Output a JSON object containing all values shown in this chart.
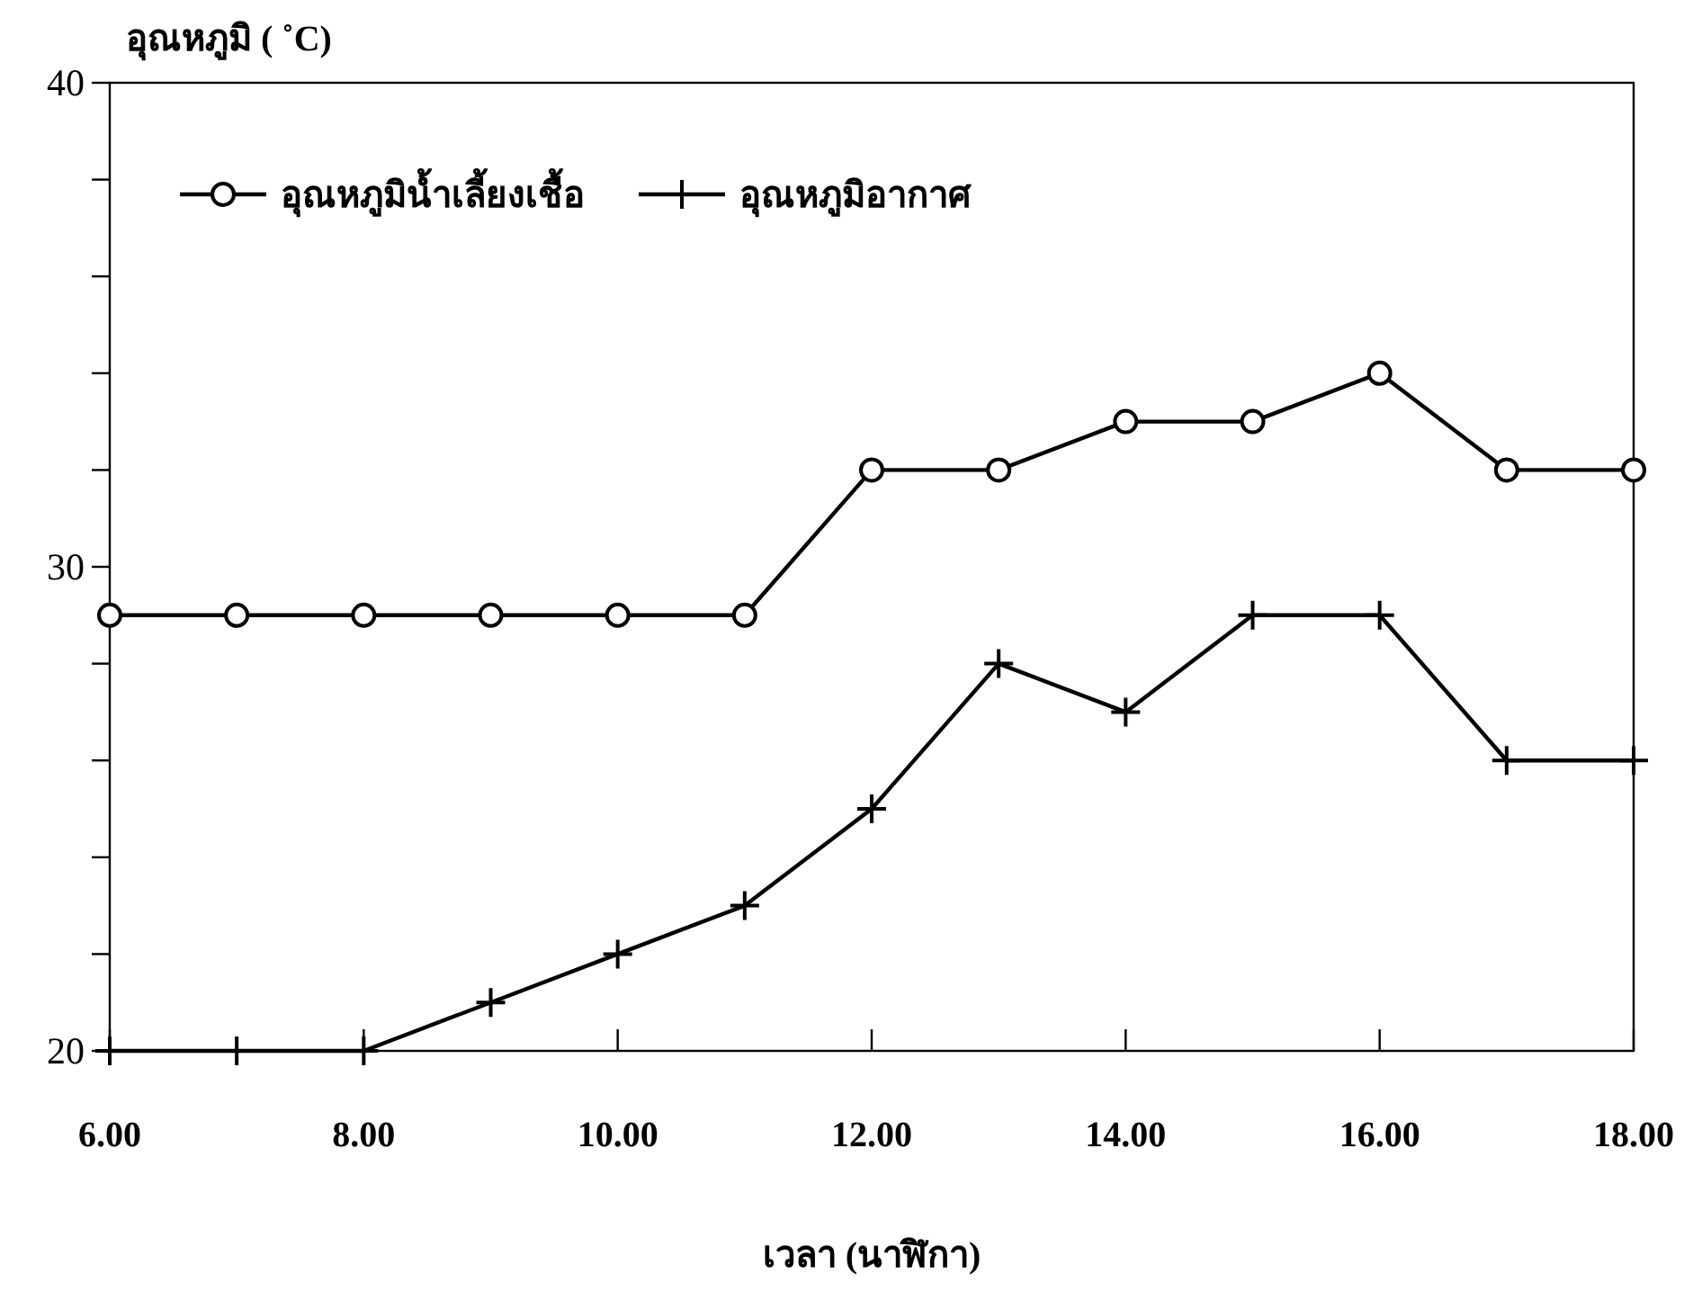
{
  "chart_data": {
    "type": "line",
    "xlabel": "เวลา (นาฬิกา)",
    "ylabel": "อุณหภูมิ ( ˚C)",
    "x": [
      6,
      7,
      8,
      9,
      10,
      11,
      12,
      13,
      14,
      15,
      16,
      17,
      18
    ],
    "series": [
      {
        "name": "อุณหภูมิน้ำเลี้ยงเชื้อ",
        "color": "#000000",
        "marker": "circle",
        "values": [
          29,
          29,
          29,
          29,
          29,
          29,
          32,
          32,
          33,
          33,
          34,
          32,
          32
        ]
      },
      {
        "name": "อุณหภูมิอากาศ",
        "color": "#000000",
        "marker": "cross",
        "values": [
          20,
          20,
          20,
          21,
          22,
          23,
          25,
          28,
          27,
          29,
          29,
          26,
          26
        ]
      }
    ],
    "xlim": [
      6,
      18
    ],
    "xticks": [
      {
        "value": 6,
        "label": "6.00"
      },
      {
        "value": 8,
        "label": "8.00"
      },
      {
        "value": 10,
        "label": "10.00"
      },
      {
        "value": 12,
        "label": "12.00"
      },
      {
        "value": 14,
        "label": "14.00"
      },
      {
        "value": 16,
        "label": "16.00"
      },
      {
        "value": 18,
        "label": "18.00"
      }
    ],
    "ylim": [
      20,
      40
    ],
    "yticks": [
      20,
      {
        "value": 22,
        "label": null
      },
      {
        "value": 24,
        "label": null
      },
      {
        "value": 26,
        "label": null
      },
      {
        "value": 28,
        "label": null
      },
      30,
      {
        "value": 32,
        "label": null
      },
      {
        "value": 34,
        "label": null
      },
      {
        "value": 36,
        "label": null
      },
      {
        "value": 38,
        "label": null
      },
      40
    ],
    "legend": "top left",
    "line_style": "solid",
    "grid": false
  }
}
